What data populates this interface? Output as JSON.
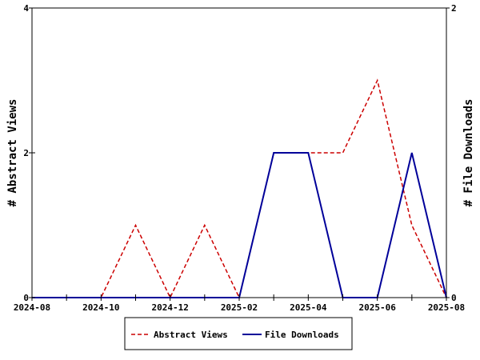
{
  "chart_data": {
    "type": "line",
    "x": [
      "2024-08",
      "2024-09",
      "2024-10",
      "2024-11",
      "2024-12",
      "2025-01",
      "2025-02",
      "2025-03",
      "2025-04",
      "2025-05",
      "2025-06",
      "2025-07",
      "2025-08"
    ],
    "x_ticks": [
      "2024-08",
      "2024-10",
      "2024-12",
      "2025-02",
      "2025-04",
      "2025-06",
      "2025-08"
    ],
    "ylabel_left": "# Abstract Views",
    "ylabel_right": "# File Downloads",
    "ylim_left": [
      0,
      4
    ],
    "ylim_right": [
      0,
      2
    ],
    "yticks_left": [
      "0",
      "2",
      "4"
    ],
    "yticks_right": [
      "0",
      "2"
    ],
    "legend_position": "bottom",
    "series": [
      {
        "name": "Abstract Views",
        "axis": "left",
        "color": "#cc0000",
        "style": "dashed",
        "values": [
          0,
          0,
          0,
          1,
          0,
          1,
          0,
          2,
          2,
          2,
          3,
          1,
          0
        ]
      },
      {
        "name": "File Downloads",
        "axis": "right",
        "color": "#000099",
        "style": "solid",
        "values": [
          0,
          0,
          0,
          0,
          0,
          0,
          0,
          1,
          1,
          0,
          0,
          1,
          0
        ]
      }
    ]
  }
}
